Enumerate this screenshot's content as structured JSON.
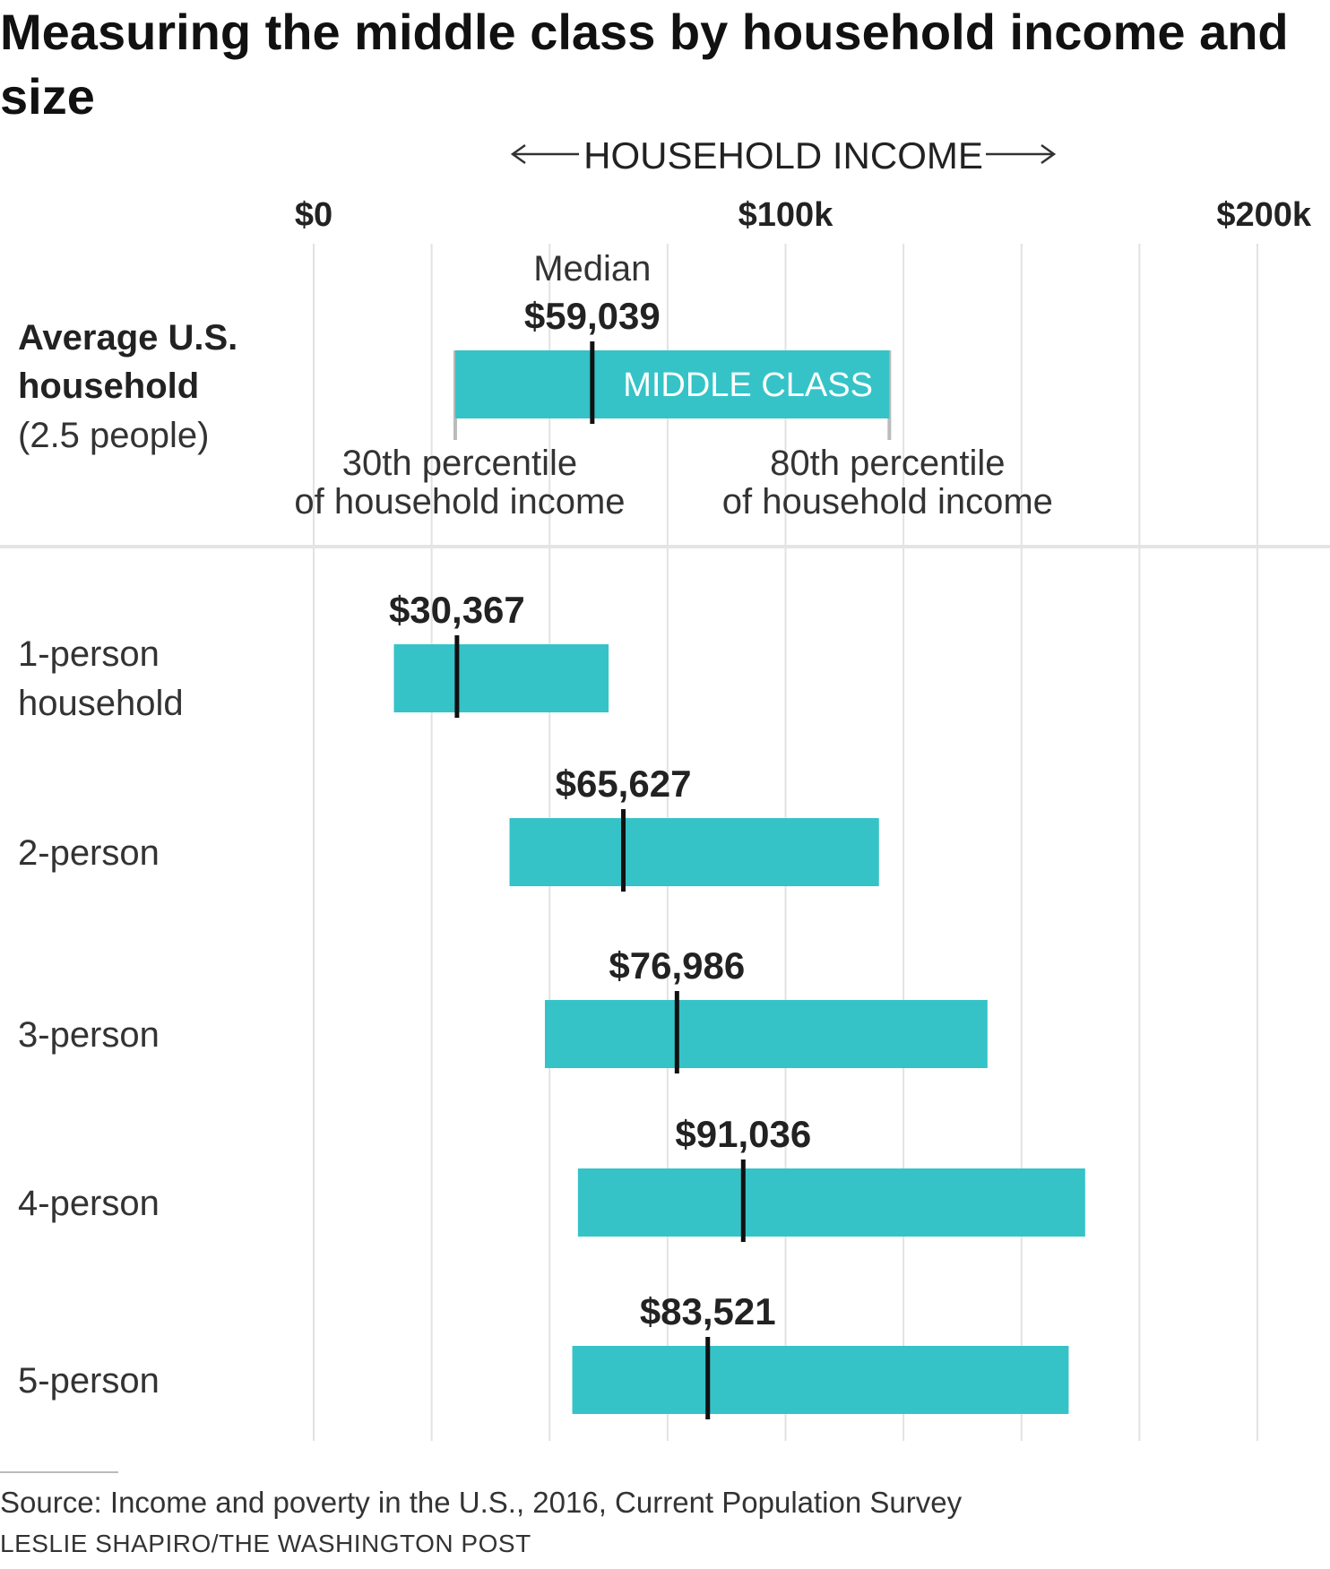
{
  "title": "Measuring the middle class by household income and size",
  "axis_header": "HOUSEHOLD INCOME",
  "colors": {
    "band": "#35c3c8",
    "median_mark": "#111111",
    "grid": "#e2e2e2",
    "whisker": "#bbbbbb"
  },
  "chart_data": {
    "type": "range-bar",
    "title": "Measuring the middle class by household income and size",
    "xlabel": "HOUSEHOLD INCOME",
    "xlim": [
      0,
      200000
    ],
    "ticks": [
      {
        "value": 0,
        "label": "$0"
      },
      {
        "value": 100000,
        "label": "$100k"
      },
      {
        "value": 200000,
        "label": "$200k"
      }
    ],
    "band_label": "MIDDLE CLASS",
    "median_caption": "Median",
    "low_caption": [
      "30th percentile",
      "of household income"
    ],
    "high_caption": [
      "80th percentile",
      "of household income"
    ],
    "rows": [
      {
        "label_bold": [
          "Average U.S.",
          "household"
        ],
        "label_sub": "(2.5 people)",
        "low": 30000,
        "high": 122000,
        "median": 59039,
        "median_label": "$59,039"
      },
      {
        "label": [
          "1-person",
          "household"
        ],
        "low": 17000,
        "high": 62500,
        "median": 30367,
        "median_label": "$30,367"
      },
      {
        "label": [
          "2-person"
        ],
        "low": 41500,
        "high": 119800,
        "median": 65627,
        "median_label": "$65,627"
      },
      {
        "label": [
          "3-person"
        ],
        "low": 49000,
        "high": 142800,
        "median": 76986,
        "median_label": "$76,986"
      },
      {
        "label": [
          "4-person"
        ],
        "low": 56000,
        "high": 163500,
        "median": 91036,
        "median_label": "$91,036"
      },
      {
        "label": [
          "5-person"
        ],
        "low": 54800,
        "high": 160000,
        "median": 83521,
        "median_label": "$83,521"
      }
    ]
  },
  "source": "Source: Income and poverty in the U.S., 2016, Current Population Survey",
  "credit": "LESLIE SHAPIRO/THE WASHINGTON POST"
}
